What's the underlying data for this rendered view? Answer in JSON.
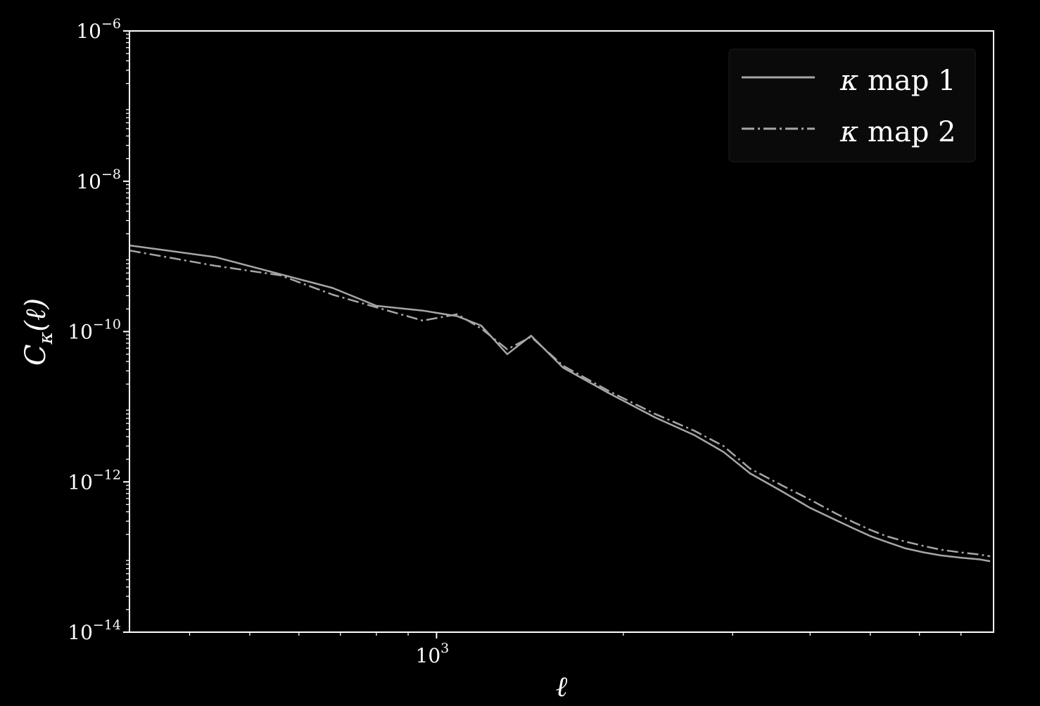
{
  "chart_data": {
    "type": "line",
    "title": "",
    "xlabel": "ℓ",
    "ylabel": "C",
    "ylabel_sub": "κ",
    "ylabel_arg": "(ℓ)",
    "xscale": "log",
    "yscale": "log",
    "xlim": [
      320,
      7900
    ],
    "ylim": [
      1e-14,
      1e-06
    ],
    "x_ticks": [
      {
        "value": 1000,
        "base": "10",
        "exp": "3"
      }
    ],
    "y_ticks": [
      {
        "value": 1e-14,
        "base": "10",
        "exp": "−14"
      },
      {
        "value": 1e-12,
        "base": "10",
        "exp": "−12"
      },
      {
        "value": 1e-10,
        "base": "10",
        "exp": "−10"
      },
      {
        "value": 1e-08,
        "base": "10",
        "exp": "−8"
      },
      {
        "value": 1e-06,
        "base": "10",
        "exp": "−6"
      }
    ],
    "legend_position": "top-right",
    "colors": {
      "background": "#000000",
      "axes": "#ffffff",
      "series": "#a6a6a6",
      "legend_frame": "#0a0a0a"
    },
    "series": [
      {
        "name": "κ map 1",
        "label_symbol": "κ",
        "label_rest": " map 1",
        "linestyle": "solid",
        "x": [
          320,
          440,
          560,
          680,
          800,
          950,
          1080,
          1180,
          1300,
          1420,
          1600,
          1900,
          2250,
          2600,
          2900,
          3200,
          3600,
          4000,
          4400,
          4700,
          5000,
          5300,
          5700,
          6100,
          6500,
          7000,
          7500,
          7800
        ],
        "y": [
          1.4e-09,
          9.8e-10,
          5.8e-10,
          3.8e-10,
          2.2e-10,
          1.9e-10,
          1.6e-10,
          1.2e-10,
          5e-11,
          8.8e-11,
          3.3e-11,
          1.5e-11,
          7.2e-12,
          4.2e-12,
          2.5e-12,
          1.3e-12,
          7.5e-13,
          4.5e-13,
          3.1e-13,
          2.4e-13,
          1.9e-13,
          1.6e-13,
          1.3e-13,
          1.15e-13,
          1.05e-13,
          9.8e-14,
          9.3e-14,
          8.8e-14
        ]
      },
      {
        "name": "κ map 2",
        "label_symbol": "κ",
        "label_rest": " map 2",
        "linestyle": "dashdot",
        "x": [
          320,
          440,
          560,
          680,
          800,
          950,
          1080,
          1180,
          1300,
          1420,
          1600,
          1900,
          2250,
          2600,
          2900,
          3200,
          3600,
          4000,
          4400,
          4700,
          5000,
          5300,
          5700,
          6100,
          6500,
          7000,
          7500,
          7800
        ],
        "y": [
          1.2e-09,
          7.5e-10,
          5.6e-10,
          3.1e-10,
          2.1e-10,
          1.4e-10,
          1.7e-10,
          1.1e-10,
          5.8e-11,
          8.5e-11,
          3.5e-11,
          1.6e-11,
          8e-12,
          4.8e-12,
          3e-12,
          1.5e-12,
          9e-13,
          5.8e-13,
          3.8e-13,
          2.9e-13,
          2.3e-13,
          1.9e-13,
          1.6e-13,
          1.4e-13,
          1.25e-13,
          1.15e-13,
          1.08e-13,
          1.02e-13
        ]
      }
    ]
  }
}
